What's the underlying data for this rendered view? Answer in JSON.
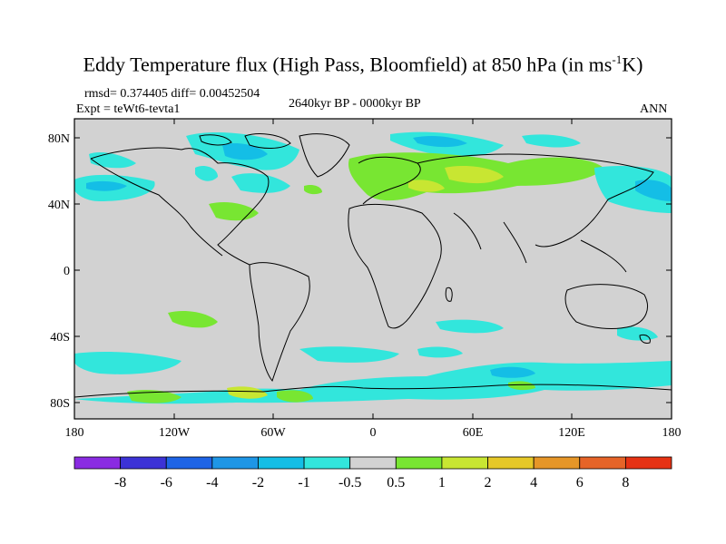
{
  "title": {
    "prefix": "Eddy Temperature flux (High Pass, Bloomfield) at 850 hPa (in ms",
    "superscript": "-1",
    "suffix": "K)"
  },
  "stats": {
    "rmsd": "rmsd= 0.374405",
    "diff": "diff= 0.00452504"
  },
  "experiment": "Expt = teWt6-tevta1",
  "period": "2640kyr BP - 0000kyr BP",
  "season": "ANN",
  "axes": {
    "y_ticks": [
      "80N",
      "40N",
      "0",
      "40S",
      "80S"
    ],
    "x_ticks": [
      "180",
      "120W",
      "60W",
      "0",
      "60E",
      "120E",
      "180"
    ]
  },
  "colorbar": {
    "labels": [
      "-8",
      "-6",
      "-4",
      "-2",
      "-1",
      "-0.5",
      "0.5",
      "1",
      "2",
      "4",
      "6",
      "8"
    ],
    "colors": [
      "#8a2be2",
      "#3c32d6",
      "#1e64e6",
      "#1e96e6",
      "#14bee6",
      "#32e6dc",
      "#d2d2d2",
      "#78e632",
      "#c8e632",
      "#e6c828",
      "#e69628",
      "#e66428",
      "#e63214"
    ]
  },
  "colors": {
    "land_ocean_background": "#d2d2d2",
    "coastline": "#000000"
  }
}
